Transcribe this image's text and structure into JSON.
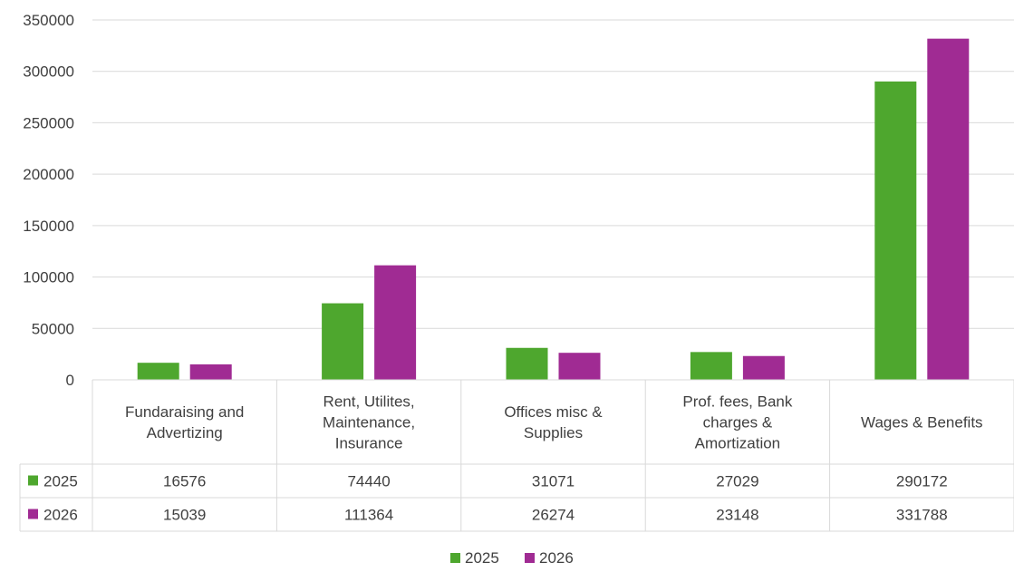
{
  "chart_data": {
    "type": "bar",
    "categories": [
      [
        "Fundaraising and",
        "Advertizing"
      ],
      [
        "Rent, Utilites,",
        "Maintenance,",
        "Insurance"
      ],
      [
        "Offices misc &",
        "Supplies"
      ],
      [
        "Prof. fees, Bank",
        "charges &",
        "Amortization"
      ],
      [
        "Wages & Benefits"
      ]
    ],
    "series": [
      {
        "name": "2025",
        "color": "#4ea72e",
        "values": [
          16576,
          74440,
          31071,
          27029,
          290172
        ]
      },
      {
        "name": "2026",
        "color": "#a02b93",
        "values": [
          15039,
          111364,
          26274,
          23148,
          331788
        ]
      }
    ],
    "ylim": [
      0,
      350000
    ],
    "yticks": [
      "0",
      "50000",
      "100000",
      "150000",
      "200000",
      "250000",
      "300000",
      "350000"
    ],
    "grid": true,
    "data_table": true,
    "legend": "bottom"
  }
}
